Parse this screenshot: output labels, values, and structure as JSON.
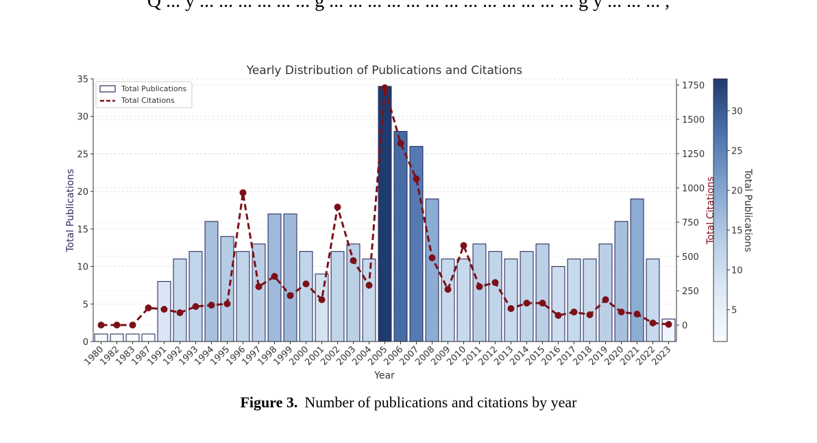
{
  "page": {
    "top_text": "Q ... y ... ... ... ... ... ... g ... ... ... ... ... ... ... ... ... ... ... ... ... g y ... ... ... ,",
    "caption_label": "Figure 3.",
    "caption_text": "Number of publications and citations by year"
  },
  "colors": {
    "citations_line": "#7b1018",
    "bar_edge": "#2b2d5e",
    "colorbar_low": "#f7fbff",
    "colorbar_high": "#1f3a6e"
  },
  "chart_data": {
    "type": "bar",
    "title": "Yearly Distribution of Publications and Citations",
    "xlabel": "Year",
    "ylabel": "Total Publications",
    "y2label": "Total Citations",
    "colorbar_label": "Total Publications",
    "categories": [
      "1980",
      "1982",
      "1983",
      "1987",
      "1991",
      "1992",
      "1993",
      "1994",
      "1995",
      "1996",
      "1997",
      "1998",
      "1999",
      "2000",
      "2001",
      "2002",
      "2003",
      "2004",
      "2005",
      "2006",
      "2007",
      "2008",
      "2009",
      "2010",
      "2011",
      "2012",
      "2013",
      "2014",
      "2015",
      "2016",
      "2017",
      "2018",
      "2019",
      "2020",
      "2021",
      "2022",
      "2023"
    ],
    "series": [
      {
        "name": "Total Publications",
        "axis": "left",
        "kind": "bar",
        "values": [
          1,
          1,
          1,
          1,
          8,
          11,
          12,
          16,
          14,
          12,
          13,
          17,
          17,
          12,
          9,
          12,
          13,
          11,
          34,
          28,
          26,
          19,
          11,
          11,
          13,
          12,
          11,
          12,
          13,
          10,
          11,
          11,
          13,
          16,
          19,
          11,
          3
        ]
      },
      {
        "name": "Total Citations",
        "axis": "right",
        "kind": "line",
        "style": "dashed",
        "values": [
          0,
          0,
          0,
          125,
          115,
          90,
          135,
          145,
          155,
          965,
          280,
          355,
          215,
          300,
          185,
          860,
          470,
          290,
          1730,
          1325,
          1065,
          490,
          260,
          580,
          280,
          310,
          120,
          160,
          160,
          70,
          95,
          75,
          185,
          95,
          80,
          15,
          5
        ]
      }
    ],
    "ylim": [
      0,
      35
    ],
    "yticks": [
      0,
      5,
      10,
      15,
      20,
      25,
      30,
      35
    ],
    "y2lim": [
      -120,
      1795
    ],
    "y2ticks": [
      0,
      250,
      500,
      750,
      1000,
      1250,
      1500,
      1750
    ],
    "colorbar_ticks": [
      5,
      10,
      15,
      20,
      25,
      30
    ],
    "colorbar_range": [
      1,
      34
    ],
    "grid": true,
    "legend_position": "top-left"
  }
}
